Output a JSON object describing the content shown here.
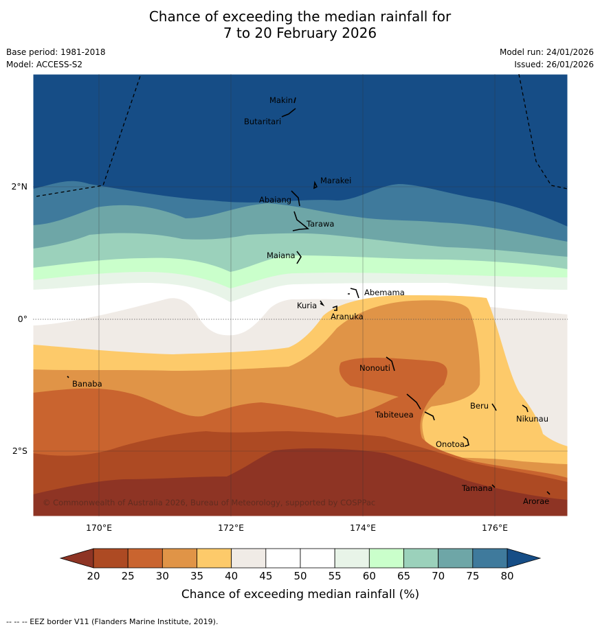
{
  "title_line1": "Chance of exceeding the median rainfall for",
  "title_line2": "7 to 20 February 2026",
  "base_period": "Base period: 1981-2018",
  "model": "Model: ACCESS-S2",
  "model_run": "Model run: 24/01/2026",
  "issued": "Issued: 26/01/2026",
  "copyright": "© Commonwealth of Australia 2026, Bureau of Meteorology, supported by COSPPac",
  "footnote": "-- -- -- EEZ border V11 (Flanders Marine Institute, 2019).",
  "colorbar": {
    "label": "Chance of exceeding median rainfall (%)",
    "ticks": [
      "20",
      "25",
      "30",
      "35",
      "40",
      "45",
      "50",
      "55",
      "60",
      "65",
      "70",
      "75",
      "80"
    ],
    "colors": [
      "#ad4a23",
      "#c9642f",
      "#e09447",
      "#fdca6a",
      "#f0ebe6",
      "#ffffff",
      "#ffffff",
      "#e8f4e8",
      "#caffcb",
      "#9bd1bb",
      "#6ea6a7",
      "#3f7a9c"
    ],
    "under_color": "#8e3424",
    "over_color": "#164d86"
  },
  "chart_data": {
    "type": "map-contour",
    "variable": "Chance of exceeding median rainfall (%)",
    "lon_range": [
      169,
      177.1
    ],
    "lat_range": [
      -3.0,
      3.7
    ],
    "x_ticks": [
      "170°E",
      "172°E",
      "174°E",
      "176°E"
    ],
    "y_ticks": [
      "2°N",
      "0°",
      "2°S"
    ],
    "places": [
      {
        "name": "Makin",
        "lon": 172.99,
        "lat": 3.38
      },
      {
        "name": "Butaritari",
        "lon": 172.82,
        "lat": 3.07
      },
      {
        "name": "Marakei",
        "lon": 173.3,
        "lat": 2.02
      },
      {
        "name": "Abaiang",
        "lon": 172.95,
        "lat": 1.85
      },
      {
        "name": "Tarawa",
        "lon": 173.05,
        "lat": 1.45
      },
      {
        "name": "Maiana",
        "lon": 173.0,
        "lat": 0.93
      },
      {
        "name": "Abemama",
        "lon": 173.9,
        "lat": 0.4
      },
      {
        "name": "Kuria",
        "lon": 173.4,
        "lat": 0.23
      },
      {
        "name": "Aranuka",
        "lon": 173.6,
        "lat": 0.18
      },
      {
        "name": "Banaba",
        "lon": 169.53,
        "lat": -0.87
      },
      {
        "name": "Nonouti",
        "lon": 174.42,
        "lat": -0.68
      },
      {
        "name": "Tabiteuea",
        "lon": 174.85,
        "lat": -1.35
      },
      {
        "name": "Beru",
        "lon": 175.98,
        "lat": -1.33
      },
      {
        "name": "Nikunau",
        "lon": 176.45,
        "lat": -1.37
      },
      {
        "name": "Onotoa",
        "lon": 175.57,
        "lat": -1.82
      },
      {
        "name": "Tamana",
        "lon": 175.98,
        "lat": -2.5
      },
      {
        "name": "Arorae",
        "lon": 176.83,
        "lat": -2.64
      }
    ],
    "summary": "Above-median rainfall likely (>75%) north of about 2°N; below-median likely (<30%) across southern Kiribati, lowest (<20%) south of about 2°S."
  }
}
